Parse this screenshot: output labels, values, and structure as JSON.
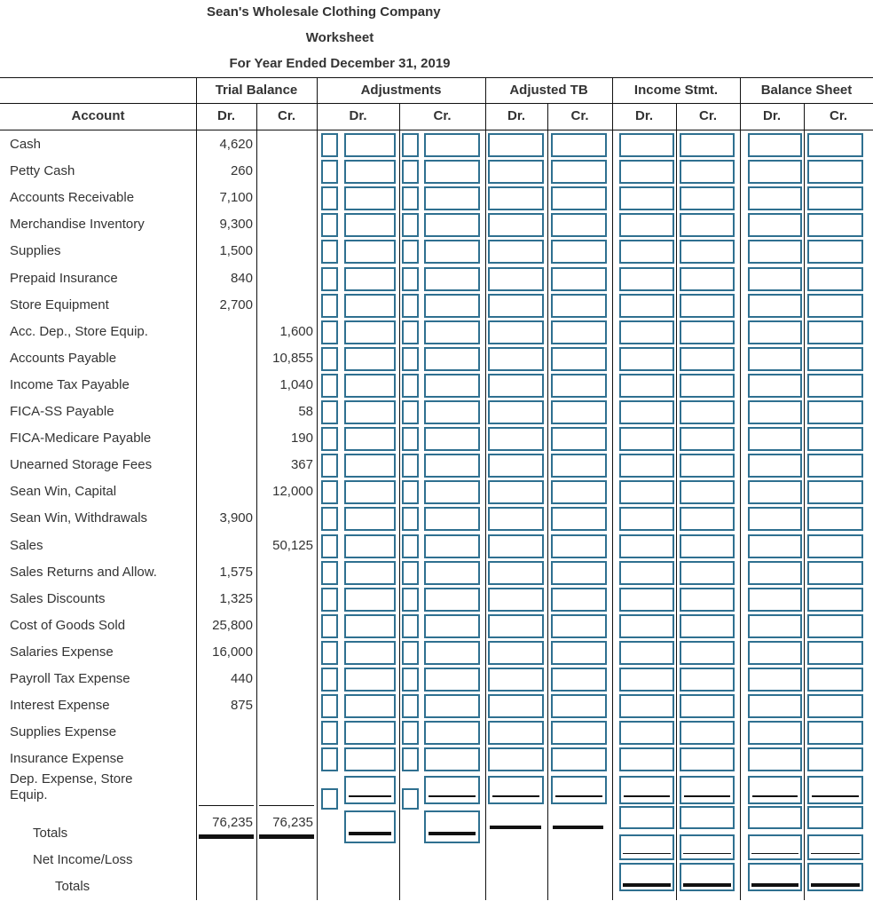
{
  "header": {
    "company": "Sean's Wholesale Clothing Company",
    "title": "Worksheet",
    "period": "For Year Ended December 31, 2019"
  },
  "table": {
    "groups": [
      "Trial Balance",
      "Adjustments",
      "Adjusted TB",
      "Income Stmt.",
      "Balance Sheet"
    ],
    "columns": [
      "Account",
      "Dr.",
      "Cr.",
      "Dr.",
      "Cr.",
      "Dr.",
      "Cr.",
      "Dr.",
      "Cr.",
      "Dr.",
      "Cr."
    ],
    "rows": [
      {
        "account": "Cash",
        "dr": "4,620"
      },
      {
        "account": "Petty Cash",
        "dr": "260"
      },
      {
        "account": "Accounts Receivable",
        "dr": "7,100"
      },
      {
        "account": "Merchandise Inventory",
        "dr": "9,300"
      },
      {
        "account": "Supplies",
        "dr": "1,500"
      },
      {
        "account": "Prepaid Insurance",
        "dr": "840"
      },
      {
        "account": "Store Equipment",
        "dr": "2,700"
      },
      {
        "account": "Acc. Dep., Store Equip.",
        "cr": "1,600"
      },
      {
        "account": "Accounts Payable",
        "cr": "10,855"
      },
      {
        "account": "Income Tax Payable",
        "cr": "1,040"
      },
      {
        "account": "FICA-SS Payable",
        "cr": "58"
      },
      {
        "account": "FICA-Medicare Payable",
        "cr": "190"
      },
      {
        "account": "Unearned Storage Fees",
        "cr": "367"
      },
      {
        "account": "Sean Win, Capital",
        "cr": "12,000"
      },
      {
        "account": "Sean Win, Withdrawals",
        "dr": "3,900"
      },
      {
        "account": "Sales",
        "cr": "50,125"
      },
      {
        "account": "Sales Returns and Allow.",
        "dr": "1,575"
      },
      {
        "account": "Sales Discounts",
        "dr": "1,325"
      },
      {
        "account": "Cost of Goods Sold",
        "dr": "25,800"
      },
      {
        "account": "Salaries Expense",
        "dr": "16,000"
      },
      {
        "account": "Payroll Tax Expense",
        "dr": "440"
      },
      {
        "account": "Interest Expense",
        "dr": "875"
      },
      {
        "account": "Supplies Expense"
      },
      {
        "account": "Insurance Expense"
      },
      {
        "account": "Dep. Expense, Store Equip."
      }
    ],
    "totals": {
      "label": "Totals",
      "dr": "76,235",
      "cr": "76,235"
    },
    "net_income_label": "Net Income/Loss",
    "final_totals_label": "Totals"
  }
}
